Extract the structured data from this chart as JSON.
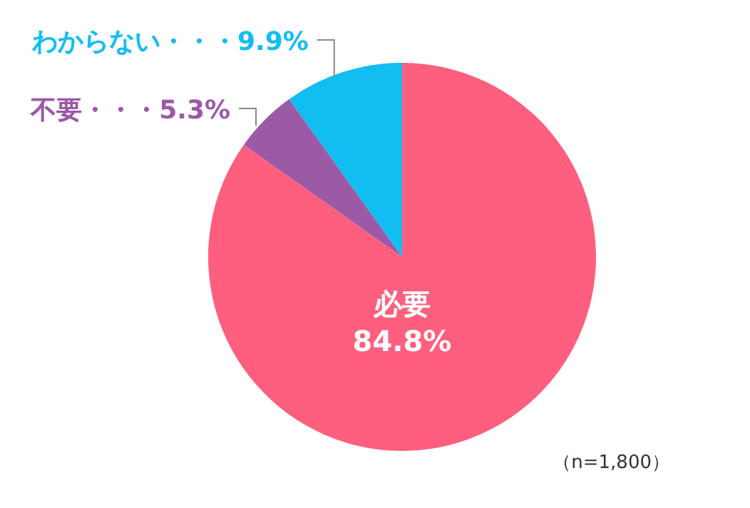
{
  "chart_data": {
    "type": "pie",
    "categories": [
      "必要",
      "不要",
      "わからない"
    ],
    "values": [
      84.8,
      5.3,
      9.9
    ],
    "colors": [
      "#ff5f7e",
      "#9b59a6",
      "#12bdf2"
    ],
    "value_labels": [
      "84.8%",
      "・・・5.3%",
      "・・・9.9%"
    ],
    "annotations": [
      "（n=1,800）"
    ]
  }
}
